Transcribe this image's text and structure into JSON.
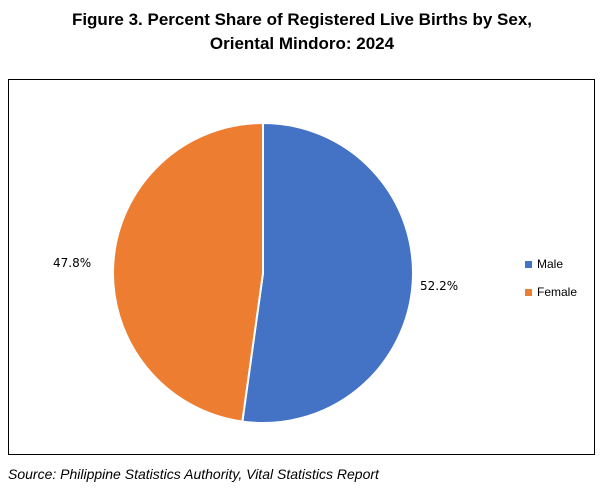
{
  "title": {
    "line1": "Figure 3. Percent Share of Registered Live Births by Sex,",
    "line2": "Oriental Mindoro: 2024"
  },
  "source": "Source: Philippine Statistics Authority, Vital Statistics Report",
  "chart_data": {
    "type": "pie",
    "title": "Figure 3. Percent Share of Registered Live Births by Sex, Oriental Mindoro: 2024",
    "categories": [
      "Male",
      "Female"
    ],
    "values": [
      52.2,
      47.8
    ],
    "labels": [
      "52.2%",
      "47.8%"
    ],
    "colors": [
      "#4472C4",
      "#ED7D31"
    ],
    "legend": "right",
    "start": "12 o'clock, clockwise"
  }
}
